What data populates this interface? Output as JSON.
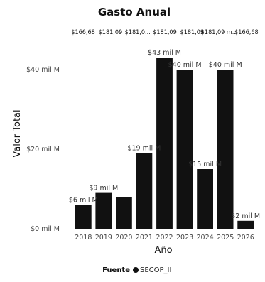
{
  "chart_data": {
    "type": "bar",
    "title": "Gasto Anual",
    "xlabel": "Año",
    "ylabel": "Valor Total",
    "categories": [
      "2018",
      "2019",
      "2020",
      "2021",
      "2022",
      "2023",
      "2024",
      "2025",
      "2026"
    ],
    "series": [
      {
        "name": "SECOP_II",
        "values": [
          6,
          9,
          8,
          19,
          43,
          40,
          15,
          40,
          2
        ]
      }
    ],
    "data_labels": [
      "$6 mil M",
      "$9 mil M",
      "",
      "$19 mil M",
      "$43 mil M",
      "$40 mil M",
      "$15 mil M",
      "$40 mil M",
      "$2 mil M"
    ],
    "top_labels": [
      "$166,68",
      "$181,09",
      "$181,0...",
      "$181,09",
      "$181,09",
      "$181,09 m...",
      "$166,68"
    ],
    "ylim": [
      0,
      45
    ],
    "yticks": [
      0,
      20,
      40
    ],
    "ytick_labels": [
      "$0 mil M",
      "$20 mil M",
      "$40 mil M"
    ],
    "grid": false,
    "legend": {
      "title": "Fuente",
      "position": "bottom",
      "entries": [
        "SECOP_II"
      ]
    },
    "colors": {
      "bar": "#111111",
      "legend_marker": "#111111"
    }
  }
}
